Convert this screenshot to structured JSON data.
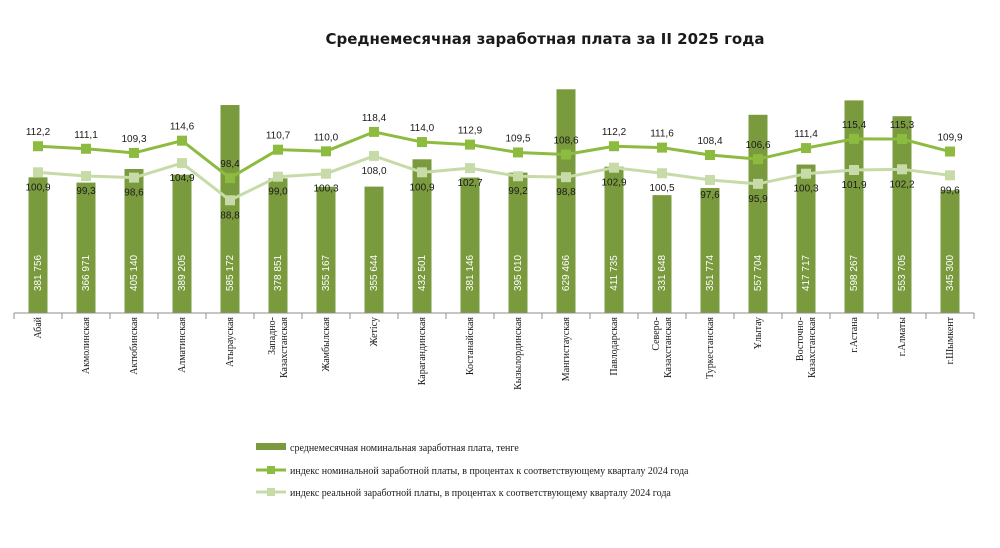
{
  "chart_data": {
    "type": "bar",
    "title": "Среднемесячная заработная плата за II 2025 года",
    "categories": [
      [
        "Абай"
      ],
      [
        "Акмолинская"
      ],
      [
        "Актюбинская"
      ],
      [
        "Алматинская"
      ],
      [
        "Атырауская"
      ],
      [
        "Западно-",
        "Казахстанская"
      ],
      [
        "Жамбылская"
      ],
      [
        "Жетісу"
      ],
      [
        "Карагандинская"
      ],
      [
        "Костанайская"
      ],
      [
        "Кызылординская"
      ],
      [
        "Мангистауская"
      ],
      [
        "Павлодарская"
      ],
      [
        "Северо-",
        "Казахстанская"
      ],
      [
        "Туркестанская"
      ],
      [
        "Ұлытау"
      ],
      [
        "Восточно-",
        "Казахстанская"
      ],
      [
        "г.Астана"
      ],
      [
        "г.Алматы"
      ],
      [
        "г.Шымкент"
      ]
    ],
    "series": [
      {
        "name": "среднемесячная номинальная заработная плата, тенге",
        "kind": "bar",
        "color": "#7a9a3e",
        "values": [
          381756,
          366971,
          405140,
          389205,
          585172,
          378851,
          355167,
          355644,
          432501,
          381146,
          395010,
          629466,
          411735,
          331648,
          351774,
          557704,
          417717,
          598267,
          553705,
          345300
        ],
        "labels": [
          "381 756",
          "366 971",
          "405 140",
          "389 205",
          "585 172",
          "378 851",
          "355 167",
          "355 644",
          "432 501",
          "381 146",
          "395 010",
          "629 466",
          "411 735",
          "331 648",
          "351 774",
          "557 704",
          "417 717",
          "598 267",
          "553 705",
          "345 300"
        ]
      },
      {
        "name": "индекс номинальной заработной платы, в процентах к соответствующему кварталу 2024 года",
        "kind": "line",
        "color": "#8dbb3f",
        "values": [
          112.2,
          111.1,
          109.3,
          114.6,
          98.4,
          110.7,
          110.0,
          118.4,
          114.0,
          112.9,
          109.5,
          108.6,
          112.2,
          111.6,
          108.4,
          106.6,
          111.4,
          115.4,
          115.3,
          109.9
        ],
        "labels": [
          "112,2",
          "111,1",
          "109,3",
          "114,6",
          "98,4",
          "110,7",
          "110,0",
          "118,4",
          "114,0",
          "112,9",
          "109,5",
          "108,6",
          "112,2",
          "111,6",
          "108,4",
          "106,6",
          "111,4",
          "115,4",
          "115,3",
          "109,9"
        ]
      },
      {
        "name": "индекс реальной заработной платы, в процентах к соответствующему кварталу 2024 года",
        "kind": "line",
        "color": "#c6dba8",
        "values": [
          100.9,
          99.3,
          98.6,
          104.9,
          88.8,
          99.0,
          100.3,
          108.0,
          100.9,
          102.7,
          99.2,
          98.8,
          102.9,
          100.5,
          97.6,
          95.9,
          100.3,
          101.9,
          102.2,
          99.6
        ],
        "labels": [
          "100,9",
          "99,3",
          "98,6",
          "104,9",
          "88,8",
          "99,0",
          "100,3",
          "108,0",
          "100,9",
          "102,7",
          "99,2",
          "98,8",
          "102,9",
          "100,5",
          "97,6",
          "95,9",
          "100,3",
          "101,9",
          "102,2",
          "99,6"
        ]
      }
    ],
    "legend": {
      "position": "bottom",
      "items": [
        "среднемесячная  номинальная  заработная  плата,  тенге",
        "индекс  номинальной  заработной платы,  в процентах  к соответствующему  кварталу 2024  года",
        "индекс  реальной  заработной платы,  в процентах  к соответствующему  кварталу 2024  года"
      ]
    },
    "grid": false,
    "bar_ylim": [
      0,
      650000
    ],
    "line_ylim": [
      40,
      140
    ]
  }
}
